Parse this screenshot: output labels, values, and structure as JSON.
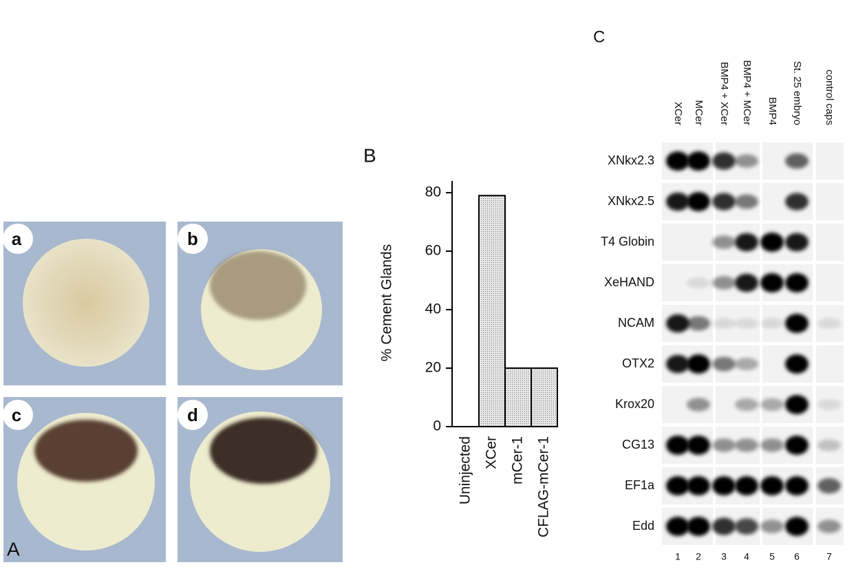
{
  "panel_a": {
    "label": "A",
    "subpanels": [
      "a",
      "b",
      "c",
      "d"
    ]
  },
  "chart_data": {
    "type": "bar",
    "panel_label": "B",
    "ylabel": "% Cement Glands",
    "categories": [
      "Uninjected",
      "XCer",
      "mCer-1",
      "CFLAG-mCer-1"
    ],
    "values": [
      0,
      79,
      20,
      20
    ],
    "color": "#d6d6d6",
    "ylim": [
      0,
      84
    ],
    "yticks": [
      0,
      20,
      40,
      60,
      80
    ]
  },
  "panel_c": {
    "label": "C",
    "lanes": [
      "XCer",
      "MCer",
      "BMP4 + XCer",
      "BMP4 + MCer",
      "BMP4",
      "St. 25 embryo",
      "control caps"
    ],
    "lane_numbers": [
      "1",
      "2",
      "3",
      "4",
      "5",
      "6",
      "7"
    ],
    "genes": [
      "XNkx2.3",
      "XNkx2.5",
      "T4 Globin",
      "XeHAND",
      "NCAM",
      "OTX2",
      "Krox20",
      "CG13",
      "EF1a",
      "Edd"
    ]
  }
}
